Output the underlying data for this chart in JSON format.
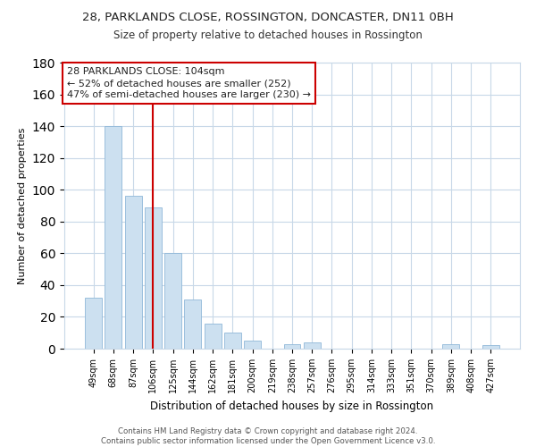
{
  "title": "28, PARKLANDS CLOSE, ROSSINGTON, DONCASTER, DN11 0BH",
  "subtitle": "Size of property relative to detached houses in Rossington",
  "xlabel": "Distribution of detached houses by size in Rossington",
  "ylabel": "Number of detached properties",
  "bar_labels": [
    "49sqm",
    "68sqm",
    "87sqm",
    "106sqm",
    "125sqm",
    "144sqm",
    "162sqm",
    "181sqm",
    "200sqm",
    "219sqm",
    "238sqm",
    "257sqm",
    "276sqm",
    "295sqm",
    "314sqm",
    "333sqm",
    "351sqm",
    "370sqm",
    "389sqm",
    "408sqm",
    "427sqm"
  ],
  "bar_values": [
    32,
    140,
    96,
    89,
    60,
    31,
    16,
    10,
    5,
    0,
    3,
    4,
    0,
    0,
    0,
    0,
    0,
    0,
    3,
    0,
    2
  ],
  "bar_color": "#cce0f0",
  "bar_edge_color": "#90b8d8",
  "vline_x": 3,
  "vline_color": "#cc0000",
  "ylim": [
    0,
    180
  ],
  "yticks": [
    0,
    20,
    40,
    60,
    80,
    100,
    120,
    140,
    160,
    180
  ],
  "annotation_line1": "28 PARKLANDS CLOSE: 104sqm",
  "annotation_line2": "← 52% of detached houses are smaller (252)",
  "annotation_line3": "47% of semi-detached houses are larger (230) →",
  "footnote": "Contains HM Land Registry data © Crown copyright and database right 2024.\nContains public sector information licensed under the Open Government Licence v3.0.",
  "background_color": "#ffffff",
  "grid_color": "#c8d8e8",
  "title_fontsize": 9.5,
  "subtitle_fontsize": 8.5,
  "ylabel_fontsize": 8,
  "xlabel_fontsize": 8.5
}
